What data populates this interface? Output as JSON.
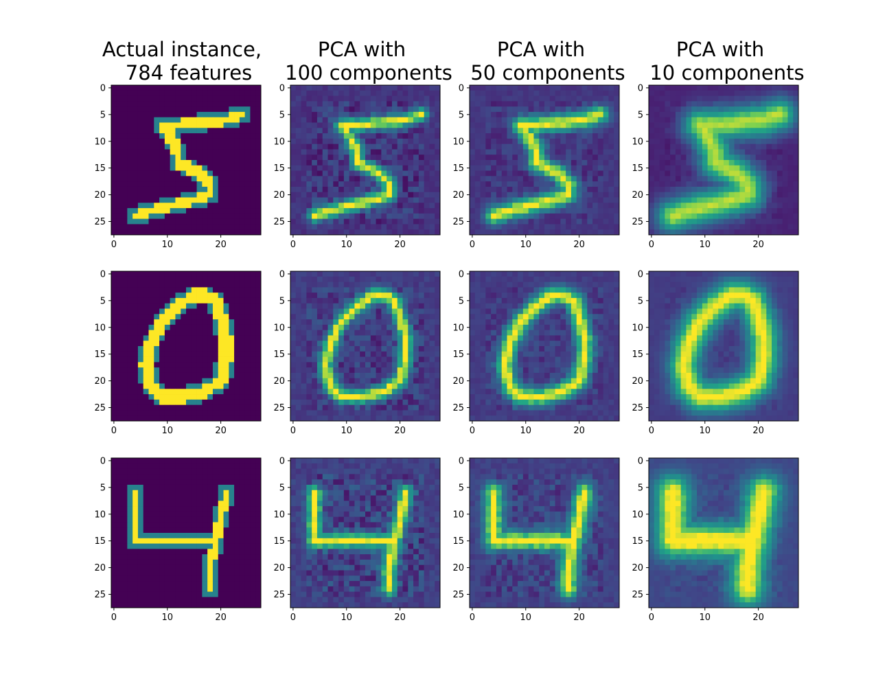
{
  "chart_data": {
    "type": "heatmap",
    "grid": "3 rows x 4 columns of image panels",
    "colormap": "viridis",
    "column_titles": [
      [
        "Actual instance,",
        "784 features"
      ],
      [
        "PCA with",
        "100 components"
      ],
      [
        "PCA with",
        "50 components"
      ],
      [
        "PCA with",
        "10 components"
      ]
    ],
    "image_size": [
      28,
      28
    ],
    "x_ticks": [
      "0",
      "10",
      "20"
    ],
    "y_ticks": [
      "0",
      "5",
      "10",
      "15",
      "20",
      "25"
    ],
    "xlim": [
      -0.5,
      27.5
    ],
    "ylim": [
      27.5,
      -0.5
    ],
    "rows": [
      {
        "digit": "5",
        "stroke_path": [
          [
            24,
            5
          ],
          [
            21,
            6
          ],
          [
            12,
            7
          ],
          [
            9,
            7
          ],
          [
            10,
            8
          ],
          [
            12,
            12
          ],
          [
            12,
            14
          ],
          [
            16,
            16
          ],
          [
            18,
            18
          ],
          [
            18,
            20
          ],
          [
            15,
            21
          ],
          [
            11,
            22
          ],
          [
            7,
            23
          ],
          [
            4,
            24
          ]
        ],
        "actual_stroke_radius": 0.9,
        "pca_blur": [
          0.95,
          1.2,
          2.3
        ],
        "pca_artifact_noise": [
          0.28,
          0.2,
          0.1
        ],
        "pca_background": [
          0.19,
          0.2,
          0.13
        ]
      },
      {
        "digit": "0",
        "stroke_path": [
          [
            17,
            4
          ],
          [
            19,
            5
          ],
          [
            20,
            8
          ],
          [
            21,
            12
          ],
          [
            21,
            16
          ],
          [
            20,
            20
          ],
          [
            17,
            22
          ],
          [
            13,
            23
          ],
          [
            9,
            23
          ],
          [
            7,
            21
          ],
          [
            6,
            17
          ],
          [
            7,
            13
          ],
          [
            9,
            9
          ],
          [
            12,
            6
          ],
          [
            15,
            4
          ],
          [
            17,
            4
          ]
        ],
        "actual_stroke_radius": 1.05,
        "pca_blur": [
          0.95,
          1.2,
          2.1
        ],
        "pca_artifact_noise": [
          0.26,
          0.2,
          0.1
        ],
        "pca_background": [
          0.22,
          0.22,
          0.22
        ]
      },
      {
        "digit": "4",
        "stroke_path": [
          [
            4,
            6
          ],
          [
            4,
            15
          ],
          [
            19,
            15
          ]
        ],
        "stroke_path_2": [
          [
            21,
            6
          ],
          [
            20,
            11
          ],
          [
            19,
            15
          ],
          [
            18,
            20
          ],
          [
            18,
            24
          ]
        ],
        "actual_stroke_radius": 0.75,
        "pca_blur": [
          1.0,
          1.3,
          2.4
        ],
        "pca_artifact_noise": [
          0.32,
          0.24,
          0.14
        ],
        "pca_background": [
          0.24,
          0.24,
          0.27
        ]
      }
    ]
  }
}
